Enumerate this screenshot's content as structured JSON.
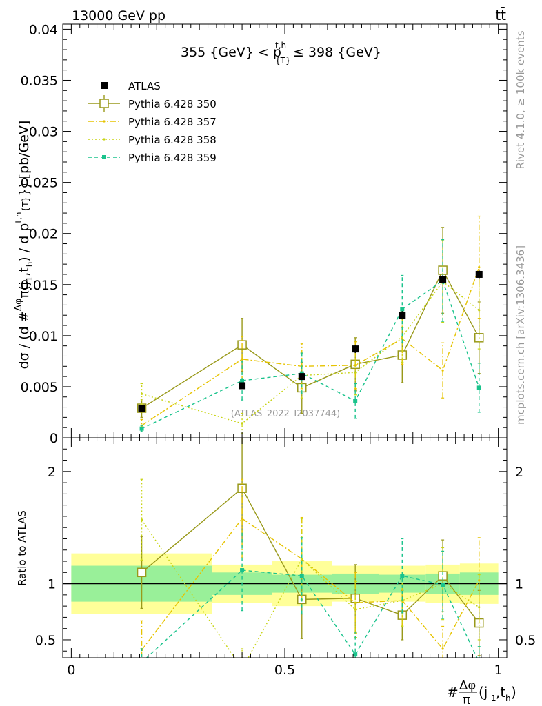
{
  "header": {
    "left": "13000 GeV pp",
    "right": "tt̄",
    "watermark": "(ATLAS_2022_I2037744)",
    "side_rivet": "Rivet 4.1.0, ≥ 100k events",
    "side_mcplots": "mcplots.cern.ch [arXiv:1306.3436]"
  },
  "chart_data": {
    "type": "scatter",
    "title": "355 {GeV} < p_{T}^{t,h} ≤ 398 {GeV}",
    "xlabel": "#Δφ/π(j1,th)",
    "ylabel": "dσ / (d #Δφ/π(j1,th) / d p_T^{t,h}) [pb/GeV]",
    "ratio_ylabel": "Ratio to ATLAS",
    "xlim": [
      -0.02,
      1.02
    ],
    "ylim": [
      0,
      0.0405
    ],
    "ratio_ylim": [
      0.34,
      2.3
    ],
    "x_ticks": [
      {
        "v": 0,
        "label": "0"
      },
      {
        "v": 0.5,
        "label": "0.5"
      },
      {
        "v": 1,
        "label": "1"
      }
    ],
    "y_ticks": [
      {
        "v": 0,
        "label": "0"
      },
      {
        "v": 0.005,
        "label": "0.005"
      },
      {
        "v": 0.01,
        "label": "0.01"
      },
      {
        "v": 0.015,
        "label": "0.015"
      },
      {
        "v": 0.02,
        "label": "0.02"
      },
      {
        "v": 0.025,
        "label": "0.025"
      },
      {
        "v": 0.03,
        "label": "0.03"
      },
      {
        "v": 0.035,
        "label": "0.035"
      },
      {
        "v": 0.04,
        "label": "0.04"
      }
    ],
    "ratio_ticks": [
      {
        "v": 0.5,
        "label": "0.5"
      },
      {
        "v": 1,
        "label": "1"
      },
      {
        "v": 2,
        "label": "2"
      }
    ],
    "legend_placement": "top-left",
    "data": {
      "name": "ATLAS",
      "x": [
        0.165,
        0.4,
        0.54,
        0.665,
        0.775,
        0.87,
        0.955
      ],
      "y": [
        0.0029,
        0.0051,
        0.006,
        0.0087,
        0.012,
        0.0155,
        0.016
      ],
      "err": [
        0.0002,
        0.0003,
        0.0003,
        0.0004,
        0.0004,
        0.0004,
        0.0004
      ],
      "bins": [
        [
          0,
          0.33
        ],
        [
          0.33,
          0.47
        ],
        [
          0.47,
          0.61
        ],
        [
          0.61,
          0.72
        ],
        [
          0.72,
          0.83
        ],
        [
          0.83,
          0.91
        ],
        [
          0.91,
          1.0
        ]
      ],
      "band_inner": [
        0.16,
        0.1,
        0.08,
        0.09,
        0.08,
        0.09,
        0.1
      ],
      "band_outer": [
        0.27,
        0.17,
        0.2,
        0.16,
        0.16,
        0.17,
        0.18
      ]
    },
    "series": [
      {
        "name": "Pythia 6.428 350",
        "color": "#99991a",
        "dash": "",
        "marker": "open-square",
        "x": [
          0.165,
          0.4,
          0.54,
          0.665,
          0.775,
          0.87,
          0.955
        ],
        "y": [
          0.0029,
          0.0091,
          0.0049,
          0.0072,
          0.0081,
          0.0164,
          0.0098
        ],
        "err": [
          0.0009,
          0.0026,
          0.0025,
          0.0026,
          0.0027,
          0.0042,
          0.0035
        ],
        "ratio": [
          1.1,
          1.85,
          0.86,
          0.87,
          0.72,
          1.07,
          0.65
        ],
        "ratio_err": [
          0.32,
          0.47,
          0.35,
          0.3,
          0.22,
          0.32,
          0.29
        ]
      },
      {
        "name": "Pythia 6.428 357",
        "color": "#e6c300",
        "dash": "8,3,2,3",
        "marker": "small-dot",
        "x": [
          0.165,
          0.4,
          0.54,
          0.665,
          0.775,
          0.87,
          0.955
        ],
        "y": [
          0.0012,
          0.0077,
          0.007,
          0.0071,
          0.0097,
          0.0066,
          0.0167
        ],
        "err": [
          0.0006,
          0.0022,
          0.0022,
          0.0023,
          0.0025,
          0.0027,
          0.005
        ],
        "ratio": [
          0.41,
          1.58,
          1.22,
          0.83,
          0.85,
          0.42,
          1.03
        ],
        "ratio_err": [
          0.26,
          0.35,
          0.37,
          0.27,
          0.22,
          0.2,
          0.38
        ]
      },
      {
        "name": "Pythia 6.428 358",
        "color": "#c8d414",
        "dash": "2,3",
        "marker": "small-dot",
        "x": [
          0.165,
          0.4,
          0.54,
          0.665,
          0.775,
          0.87,
          0.955
        ],
        "y": [
          0.0043,
          0.0014,
          0.0061,
          0.0064,
          0.0099,
          0.0153,
          0.0125
        ],
        "err": [
          0.001,
          0.001,
          0.0022,
          0.0022,
          0.0025,
          0.004,
          0.0038
        ],
        "ratio": [
          1.57,
          0.24,
          1.22,
          0.77,
          0.85,
          1.0,
          0.79
        ],
        "ratio_err": [
          0.36,
          0.18,
          0.36,
          0.25,
          0.23,
          0.32,
          0.29
        ]
      },
      {
        "name": "Pythia 6.428 359",
        "color": "#1ac38c",
        "dash": "5,4",
        "marker": "small-square",
        "x": [
          0.165,
          0.4,
          0.54,
          0.665,
          0.775,
          0.87,
          0.955
        ],
        "y": [
          0.0009,
          0.0056,
          0.0063,
          0.0036,
          0.0126,
          0.0154,
          0.0049
        ],
        "err": [
          0.0003,
          0.0019,
          0.002,
          0.0017,
          0.0033,
          0.004,
          0.0024
        ],
        "ratio": [
          0.3,
          1.12,
          1.07,
          0.37,
          1.07,
          0.99,
          0.3
        ],
        "ratio_err": [
          0.12,
          0.36,
          0.34,
          0.2,
          0.33,
          0.3,
          0.14
        ]
      }
    ]
  }
}
